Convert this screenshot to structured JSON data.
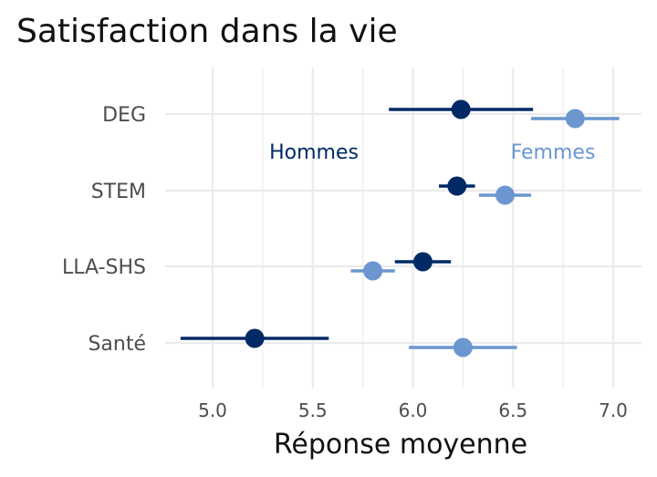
{
  "chart_data": {
    "type": "scatter",
    "title": "Satisfaction dans la vie",
    "xlabel": "Réponse moyenne",
    "ylabel": "",
    "xlim": [
      4.75,
      7.05
    ],
    "xticks": [
      "5.0",
      "5.5",
      "6.0",
      "6.5",
      "7.0"
    ],
    "categories": [
      "DEG",
      "STEM",
      "LLA-SHS",
      "Santé"
    ],
    "grid": true,
    "colors": {
      "hommes": "#002966",
      "femmes": "#6b96cf",
      "grid": "#ebebeb"
    },
    "series": [
      {
        "name": "Hommes",
        "color": "#002966",
        "points": [
          {
            "category": "DEG",
            "mean": 6.24,
            "low": 5.88,
            "high": 6.6
          },
          {
            "category": "STEM",
            "mean": 6.22,
            "low": 6.13,
            "high": 6.31
          },
          {
            "category": "LLA-SHS",
            "mean": 6.05,
            "low": 5.91,
            "high": 6.19
          },
          {
            "category": "Santé",
            "mean": 5.21,
            "low": 4.84,
            "high": 5.58
          }
        ]
      },
      {
        "name": "Femmes",
        "color": "#6b96cf",
        "points": [
          {
            "category": "DEG",
            "mean": 6.81,
            "low": 6.59,
            "high": 7.03
          },
          {
            "category": "STEM",
            "mean": 6.46,
            "low": 6.33,
            "high": 6.59
          },
          {
            "category": "LLA-SHS",
            "mean": 5.8,
            "low": 5.69,
            "high": 5.91
          },
          {
            "category": "Santé",
            "mean": 6.25,
            "low": 5.98,
            "high": 6.52
          }
        ]
      }
    ],
    "annotations": [
      {
        "text": "Hommes",
        "series": "Hommes"
      },
      {
        "text": "Femmes",
        "series": "Femmes"
      }
    ]
  }
}
